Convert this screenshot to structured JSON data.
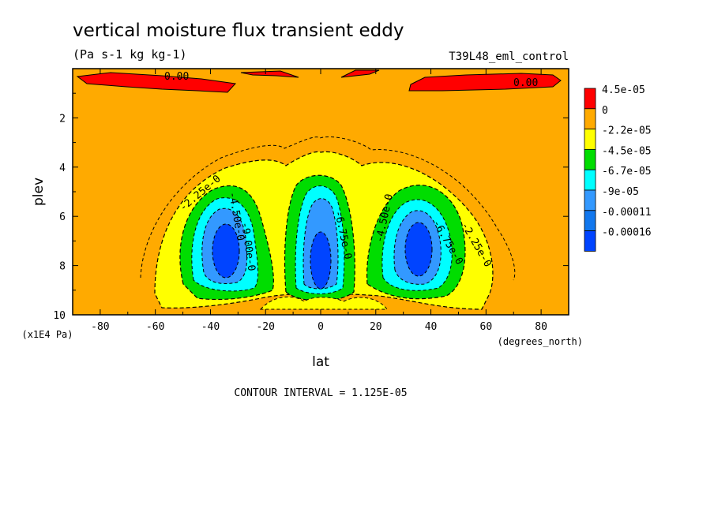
{
  "chart_data": {
    "type": "contour",
    "title": "vertical moisture flux transient eddy",
    "units": "(Pa s-1 kg kg-1)",
    "dataset": "T39L48_eml_control",
    "xlabel": "lat",
    "xunits": "(degrees_north)",
    "ylabel": "plev",
    "yunits": "(x1E4 Pa)",
    "xlim": [
      -90,
      90
    ],
    "ylim": [
      10,
      0
    ],
    "x_ticks": [
      -80,
      -60,
      -40,
      -20,
      0,
      20,
      40,
      60,
      80
    ],
    "y_ticks": [
      2,
      4,
      6,
      8,
      10
    ],
    "x_tick_labels": [
      "-80",
      "-60",
      "-40",
      "-20",
      "0",
      "20",
      "40",
      "60",
      "80"
    ],
    "y_tick_labels": [
      "2",
      "4",
      "6",
      "8",
      "10"
    ],
    "contour_interval_label": "CONTOUR INTERVAL = 1.125E-05",
    "colorbar": {
      "labels": [
        "4.5e-05",
        "0",
        "-2.2e-05",
        "-4.5e-05",
        "-6.7e-05",
        "-9e-05",
        "-0.00011",
        "-0.00016"
      ],
      "colors": [
        "#ff0000",
        "#ffaa00",
        "#ffff00",
        "#00dd00",
        "#00ffff",
        "#3399ff",
        "#1177ee",
        "#0044ff"
      ]
    },
    "contour_labels": [
      "0.00",
      "0.00",
      "-2.25e-0",
      "-4.50e-0",
      "-6.75e-0",
      "-4.50e-0",
      "-6.75e-0",
      "-2.25e-0",
      "-9.00e-0"
    ],
    "features": [
      {
        "lat": -34,
        "plev": 7.5,
        "min": -0.00016
      },
      {
        "lat": 0,
        "plev": 8.0,
        "min": -0.00016
      },
      {
        "lat": 34,
        "plev": 7.5,
        "min": -0.00016
      },
      {
        "lat": -55,
        "plev": 0.5,
        "max": 4.5e-05
      },
      {
        "lat": 65,
        "plev": 0.5,
        "max": 4.5e-05
      }
    ]
  }
}
